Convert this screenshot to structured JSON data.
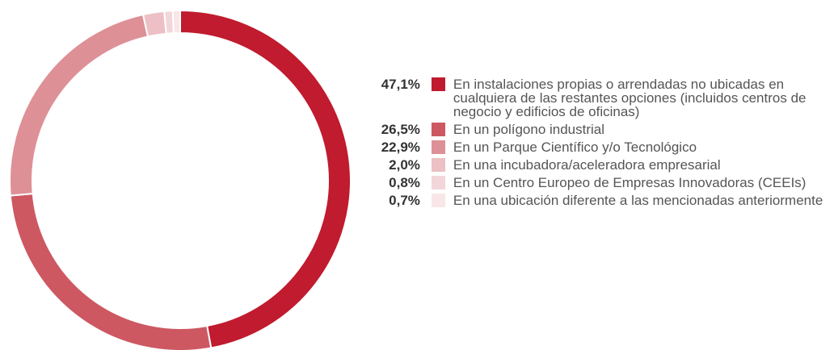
{
  "chart_data": {
    "type": "pie",
    "categories": [
      "En instalaciones propias o arrendadas no ubicadas en cualquiera de las restantes opciones (incluidos centros de negocio y edificios de oficinas)",
      "En un polígono industrial",
      "En un Parque Científico y/o Tecnológico",
      "En una incubadora/aceleradora empresarial",
      "En un Centro Europeo de Empresas Innovadoras (CEEIs)",
      "En una ubicación diferente a las mencionadas anteriormente"
    ],
    "values": [
      47.1,
      26.5,
      22.9,
      2.0,
      0.8,
      0.7
    ],
    "value_labels": [
      "47,1%",
      "26,5%",
      "22,9%",
      "2,0%",
      "0,8%",
      "0,7%"
    ],
    "colors": [
      "#c01b2e",
      "#cd5862",
      "#de9097",
      "#ecc0c4",
      "#f3d6d9",
      "#f8e6e8"
    ]
  }
}
